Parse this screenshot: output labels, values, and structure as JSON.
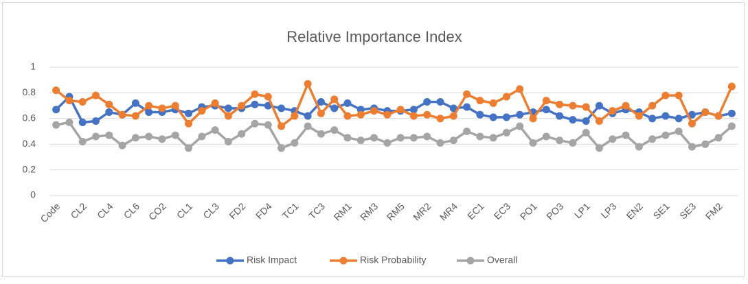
{
  "chart_data": {
    "type": "line",
    "title": "Relative Importance Index",
    "categories": [
      "Code",
      null,
      "CL2",
      null,
      "CL4",
      null,
      "CL6",
      null,
      "CO2",
      null,
      "CL1",
      null,
      "CL3",
      null,
      "FD2",
      null,
      "FD4",
      null,
      "TC1",
      null,
      "TC3",
      null,
      "RM1",
      null,
      "RM3",
      null,
      "RM5",
      null,
      "MR2",
      null,
      "MR4",
      null,
      "EC1",
      null,
      "EC3",
      null,
      "PO1",
      null,
      "PO3",
      null,
      "LP1",
      null,
      "LP3",
      null,
      "EN2",
      null,
      "SE1",
      null,
      "SE3",
      null,
      "FM2",
      null
    ],
    "series": [
      {
        "name": "Risk Impact",
        "color": "#4472c4",
        "values": [
          0.67,
          0.77,
          0.57,
          0.58,
          0.65,
          0.63,
          0.72,
          0.65,
          0.65,
          0.67,
          0.64,
          0.69,
          0.7,
          0.68,
          0.68,
          0.71,
          0.7,
          0.68,
          0.66,
          0.62,
          0.73,
          0.68,
          0.72,
          0.67,
          0.68,
          0.66,
          0.66,
          0.67,
          0.73,
          0.73,
          0.68,
          0.69,
          0.63,
          0.61,
          0.61,
          0.63,
          0.65,
          0.67,
          0.62,
          0.59,
          0.58,
          0.7,
          0.64,
          0.67,
          0.65,
          0.6,
          0.62,
          0.6,
          0.63,
          0.65,
          0.62,
          0.64
        ]
      },
      {
        "name": "Risk Probability",
        "color": "#ed7d31",
        "values": [
          0.82,
          0.74,
          0.73,
          0.78,
          0.71,
          0.63,
          0.62,
          0.7,
          0.68,
          0.7,
          0.56,
          0.66,
          0.72,
          0.62,
          0.7,
          0.79,
          0.77,
          0.54,
          0.62,
          0.87,
          0.64,
          0.75,
          0.62,
          0.63,
          0.66,
          0.63,
          0.67,
          0.62,
          0.63,
          0.6,
          0.62,
          0.79,
          0.74,
          0.72,
          0.77,
          0.83,
          0.6,
          0.74,
          0.71,
          0.7,
          0.69,
          0.58,
          0.66,
          0.7,
          0.62,
          0.7,
          0.78,
          0.78,
          0.56,
          0.65,
          0.62,
          0.85
        ]
      },
      {
        "name": "Overall",
        "color": "#a5a5a5",
        "values": [
          0.55,
          0.57,
          0.42,
          0.46,
          0.47,
          0.39,
          0.45,
          0.46,
          0.44,
          0.47,
          0.37,
          0.46,
          0.51,
          0.42,
          0.48,
          0.56,
          0.55,
          0.37,
          0.41,
          0.54,
          0.48,
          0.51,
          0.45,
          0.43,
          0.45,
          0.41,
          0.45,
          0.45,
          0.46,
          0.41,
          0.43,
          0.5,
          0.46,
          0.45,
          0.49,
          0.54,
          0.41,
          0.46,
          0.43,
          0.41,
          0.49,
          0.37,
          0.44,
          0.47,
          0.38,
          0.44,
          0.47,
          0.5,
          0.38,
          0.4,
          0.45,
          0.54
        ]
      }
    ],
    "ylim": [
      0,
      1
    ],
    "yticks": [
      0,
      0.2,
      0.4,
      0.6,
      0.8,
      1
    ],
    "grid": true,
    "legend": "bottom"
  }
}
